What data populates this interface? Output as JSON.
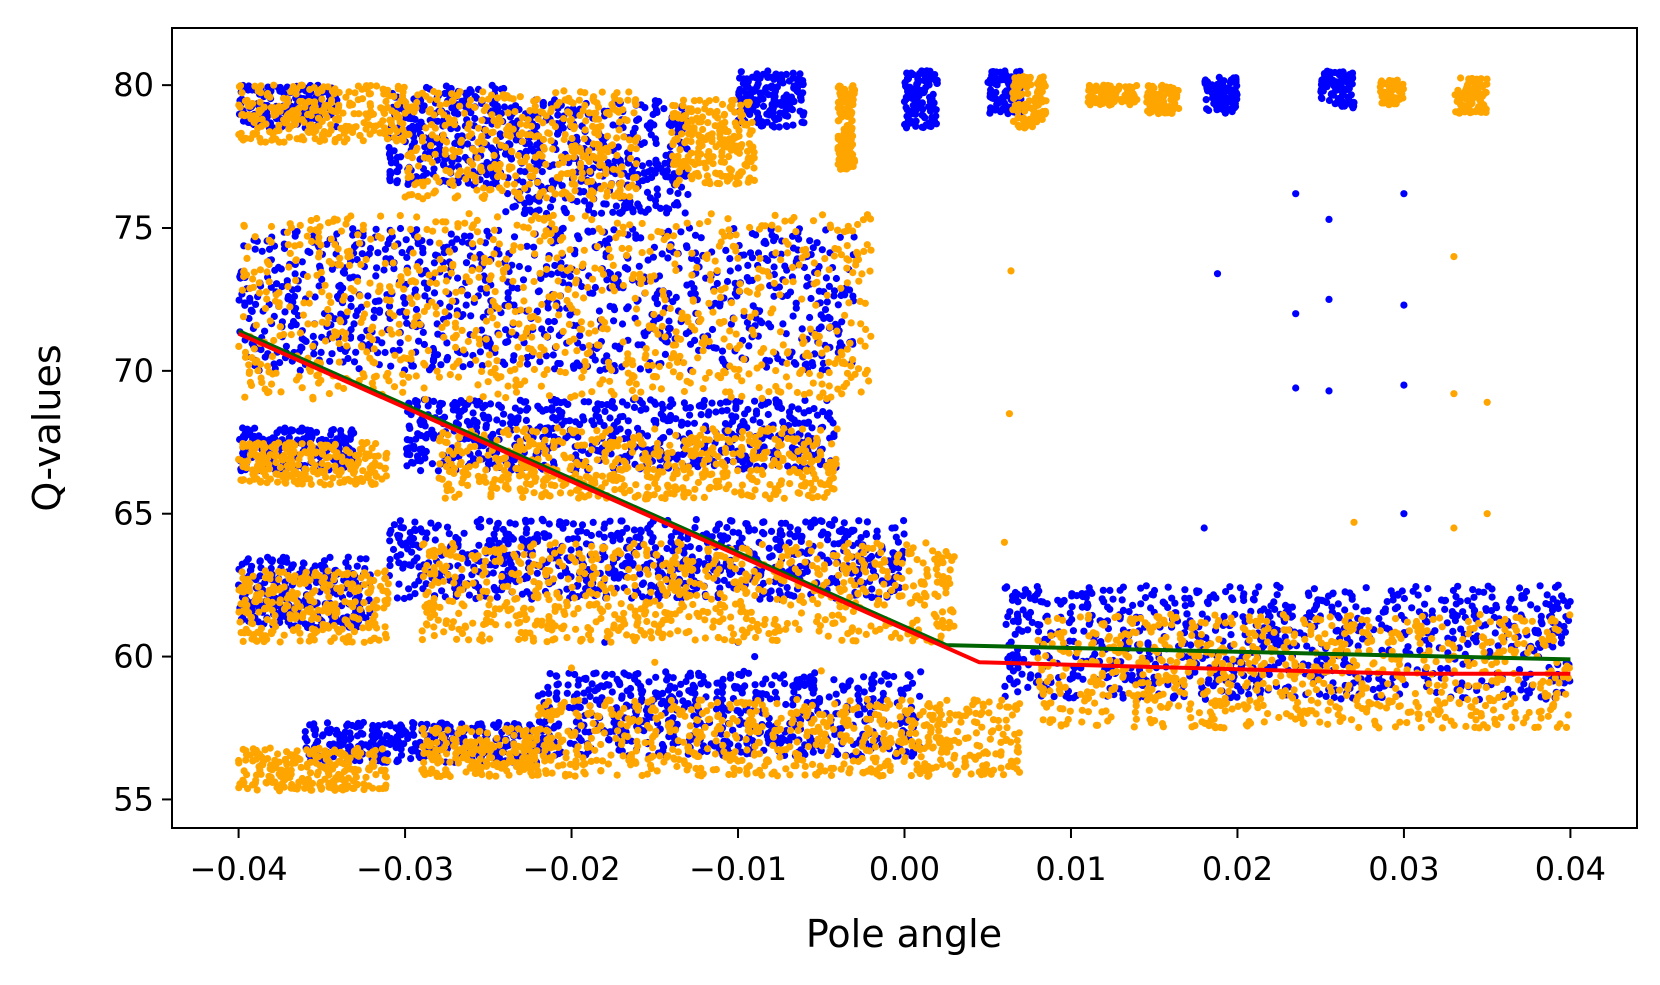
{
  "chart_data": {
    "type": "scatter",
    "title": "",
    "xlabel": "Pole angle",
    "ylabel": "Q-values",
    "xlim": [
      -0.044,
      0.044
    ],
    "ylim": [
      54,
      82
    ],
    "xticks": [
      -0.04,
      -0.03,
      -0.02,
      -0.01,
      0.0,
      0.01,
      0.02,
      0.03,
      0.04
    ],
    "xtick_labels": [
      "−0.04",
      "−0.03",
      "−0.02",
      "−0.01",
      "0.00",
      "0.01",
      "0.02",
      "0.03",
      "0.04"
    ],
    "yticks": [
      55,
      60,
      65,
      70,
      75,
      80
    ],
    "ytick_labels": [
      "55",
      "60",
      "65",
      "70",
      "75",
      "80"
    ],
    "grid": false,
    "legend": "none",
    "colors": {
      "blue": "#0000ff",
      "orange": "#ffa500",
      "green": "#006400",
      "red": "#ff0000"
    },
    "series": [
      {
        "type": "scatter",
        "color": "#0000ff",
        "clusters": [
          {
            "x": [
              -0.04,
              -0.034
            ],
            "y": [
              78.5,
              80.0
            ]
          },
          {
            "x": [
              -0.031,
              -0.024
            ],
            "y": [
              76.5,
              80.0
            ]
          },
          {
            "x": [
              -0.024,
              -0.013
            ],
            "y": [
              75.5,
              79.5
            ]
          },
          {
            "x": [
              -0.01,
              -0.006
            ],
            "y": [
              78.5,
              80.5
            ]
          },
          {
            "x": [
              0.0,
              0.002
            ],
            "y": [
              78.5,
              80.5
            ]
          },
          {
            "x": [
              0.005,
              0.007
            ],
            "y": [
              79.0,
              80.5
            ]
          },
          {
            "x": [
              0.018,
              0.02
            ],
            "y": [
              79.0,
              80.3
            ]
          },
          {
            "x": [
              0.025,
              0.027
            ],
            "y": [
              79.2,
              80.5
            ]
          },
          {
            "x": [
              -0.04,
              -0.003
            ],
            "y": [
              70.0,
              75.0
            ]
          },
          {
            "x": [
              -0.04,
              -0.033
            ],
            "y": [
              66.5,
              68.0
            ]
          },
          {
            "x": [
              -0.03,
              -0.004
            ],
            "y": [
              66.5,
              69.0
            ]
          },
          {
            "x": [
              -0.04,
              -0.032
            ],
            "y": [
              61.0,
              63.5
            ]
          },
          {
            "x": [
              -0.031,
              0.0
            ],
            "y": [
              62.0,
              64.8
            ]
          },
          {
            "x": [
              0.006,
              0.04
            ],
            "y": [
              58.5,
              62.5
            ]
          },
          {
            "x": [
              -0.036,
              -0.022
            ],
            "y": [
              56.3,
              57.7
            ]
          },
          {
            "x": [
              -0.022,
              0.001
            ],
            "y": [
              56.5,
              59.5
            ]
          }
        ],
        "sparse": [
          {
            "x": -0.01,
            "y": 60.5
          },
          {
            "x": -0.009,
            "y": 60.0
          },
          {
            "x": -0.018,
            "y": 60.5
          },
          {
            "x": 0.0235,
            "y": 76.2
          },
          {
            "x": 0.0235,
            "y": 72.0
          },
          {
            "x": 0.0235,
            "y": 69.4
          },
          {
            "x": 0.0255,
            "y": 75.3
          },
          {
            "x": 0.0255,
            "y": 72.5
          },
          {
            "x": 0.0255,
            "y": 69.3
          },
          {
            "x": 0.03,
            "y": 76.2
          },
          {
            "x": 0.03,
            "y": 72.3
          },
          {
            "x": 0.03,
            "y": 69.5
          },
          {
            "x": 0.03,
            "y": 65.0
          },
          {
            "x": 0.0188,
            "y": 73.4
          },
          {
            "x": 0.018,
            "y": 64.5
          }
        ]
      },
      {
        "type": "scatter",
        "color": "#ffa500",
        "clusters": [
          {
            "x": [
              -0.04,
              -0.03
            ],
            "y": [
              78.0,
              80.0
            ]
          },
          {
            "x": [
              -0.03,
              -0.016
            ],
            "y": [
              76.0,
              79.8
            ]
          },
          {
            "x": [
              -0.014,
              -0.009
            ],
            "y": [
              76.5,
              79.5
            ]
          },
          {
            "x": [
              -0.004,
              -0.003
            ],
            "y": [
              77.0,
              80.0
            ]
          },
          {
            "x": [
              0.0065,
              0.0085
            ],
            "y": [
              78.5,
              80.3
            ]
          },
          {
            "x": [
              0.011,
              0.014
            ],
            "y": [
              79.3,
              80.0
            ]
          },
          {
            "x": [
              0.0145,
              0.0165
            ],
            "y": [
              79.0,
              80.0
            ]
          },
          {
            "x": [
              0.0285,
              0.03
            ],
            "y": [
              79.3,
              80.2
            ]
          },
          {
            "x": [
              0.033,
              0.035
            ],
            "y": [
              79.0,
              80.3
            ]
          },
          {
            "x": [
              -0.04,
              -0.002
            ],
            "y": [
              69.0,
              75.5
            ]
          },
          {
            "x": [
              -0.04,
              -0.031
            ],
            "y": [
              66.0,
              67.5
            ]
          },
          {
            "x": [
              -0.028,
              -0.004
            ],
            "y": [
              65.5,
              68.0
            ]
          },
          {
            "x": [
              -0.04,
              -0.031
            ],
            "y": [
              60.5,
              63.0
            ]
          },
          {
            "x": [
              -0.029,
              0.003
            ],
            "y": [
              60.5,
              64.0
            ]
          },
          {
            "x": [
              0.008,
              0.04
            ],
            "y": [
              57.5,
              61.5
            ]
          },
          {
            "x": [
              -0.04,
              -0.031
            ],
            "y": [
              55.3,
              56.8
            ]
          },
          {
            "x": [
              -0.029,
              -0.022
            ],
            "y": [
              55.8,
              57.5
            ]
          },
          {
            "x": [
              -0.022,
              0.007
            ],
            "y": [
              55.8,
              58.5
            ]
          }
        ],
        "sparse": [
          {
            "x": -0.02,
            "y": 59.6
          },
          {
            "x": -0.015,
            "y": 59.8
          },
          {
            "x": -0.005,
            "y": 59.5
          },
          {
            "x": 0.006,
            "y": 64.0
          },
          {
            "x": 0.0063,
            "y": 68.5
          },
          {
            "x": 0.0064,
            "y": 73.5
          },
          {
            "x": 0.033,
            "y": 74.0
          },
          {
            "x": 0.033,
            "y": 69.2
          },
          {
            "x": 0.033,
            "y": 64.5
          },
          {
            "x": 0.035,
            "y": 68.9
          },
          {
            "x": 0.035,
            "y": 65.0
          },
          {
            "x": 0.027,
            "y": 64.7
          }
        ]
      },
      {
        "type": "line",
        "color": "#006400",
        "points": [
          {
            "x": -0.04,
            "y": 71.4
          },
          {
            "x": 0.0025,
            "y": 60.4
          },
          {
            "x": 0.04,
            "y": 59.9
          }
        ]
      },
      {
        "type": "line",
        "color": "#ff0000",
        "points": [
          {
            "x": -0.04,
            "y": 71.3
          },
          {
            "x": 0.0045,
            "y": 59.8
          },
          {
            "x": 0.03,
            "y": 59.4
          },
          {
            "x": 0.04,
            "y": 59.4
          }
        ]
      }
    ]
  }
}
